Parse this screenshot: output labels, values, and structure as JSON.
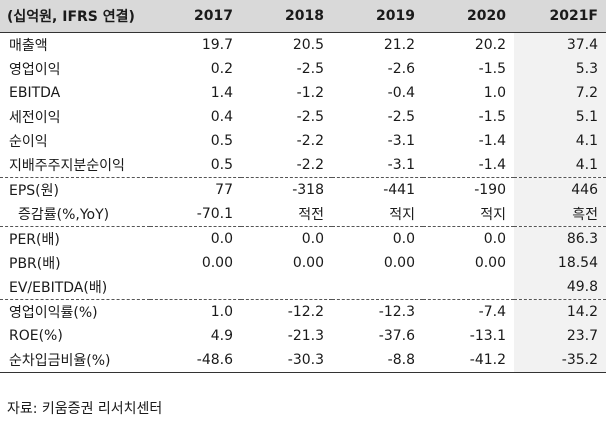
{
  "header": [
    "(십억원, IFRS 연결)",
    "2017",
    "2018",
    "2019",
    "2020",
    "2021F"
  ],
  "groups": [
    {
      "rows": [
        {
          "label": "매출액",
          "values": [
            "19.7",
            "20.5",
            "21.2",
            "20.2",
            "37.4"
          ]
        },
        {
          "label": "영업이익",
          "values": [
            "0.2",
            "-2.5",
            "-2.6",
            "-1.5",
            "5.3"
          ]
        },
        {
          "label": "EBITDA",
          "values": [
            "1.4",
            "-1.2",
            "-0.4",
            "1.0",
            "7.2"
          ]
        },
        {
          "label": "세전이익",
          "values": [
            "0.4",
            "-2.5",
            "-2.5",
            "-1.5",
            "5.1"
          ]
        },
        {
          "label": "순이익",
          "values": [
            "0.5",
            "-2.2",
            "-3.1",
            "-1.4",
            "4.1"
          ]
        },
        {
          "label": "지배주주지분순이익",
          "values": [
            "0.5",
            "-2.2",
            "-3.1",
            "-1.4",
            "4.1"
          ]
        }
      ]
    },
    {
      "rows": [
        {
          "label": "EPS(원)",
          "values": [
            "77",
            "-318",
            "-441",
            "-190",
            "446"
          ]
        },
        {
          "label": "증감률(%,YoY)",
          "indent": true,
          "values": [
            "-70.1",
            "적전",
            "적지",
            "적지",
            "흑전"
          ]
        }
      ]
    },
    {
      "rows": [
        {
          "label": "PER(배)",
          "values": [
            "0.0",
            "0.0",
            "0.0",
            "0.0",
            "86.3"
          ]
        },
        {
          "label": "PBR(배)",
          "values": [
            "0.00",
            "0.00",
            "0.00",
            "0.00",
            "18.54"
          ]
        },
        {
          "label": "EV/EBITDA(배)",
          "values": [
            "",
            "",
            "",
            "",
            "49.8"
          ]
        }
      ]
    },
    {
      "rows": [
        {
          "label": "영업이익률(%)",
          "values": [
            "1.0",
            "-12.2",
            "-12.3",
            "-7.4",
            "14.2"
          ]
        },
        {
          "label": "ROE(%)",
          "values": [
            "4.9",
            "-21.3",
            "-37.6",
            "-13.1",
            "23.7"
          ]
        },
        {
          "label": "순차입금비율(%)",
          "values": [
            "-48.6",
            "-30.3",
            "-8.8",
            "-41.2",
            "-35.2"
          ]
        }
      ]
    }
  ],
  "source": "자료: 키움증권 리서치센터",
  "colors": {
    "header_bg": "#d9d9d9",
    "forecast_bg": "#f2f2f2"
  }
}
